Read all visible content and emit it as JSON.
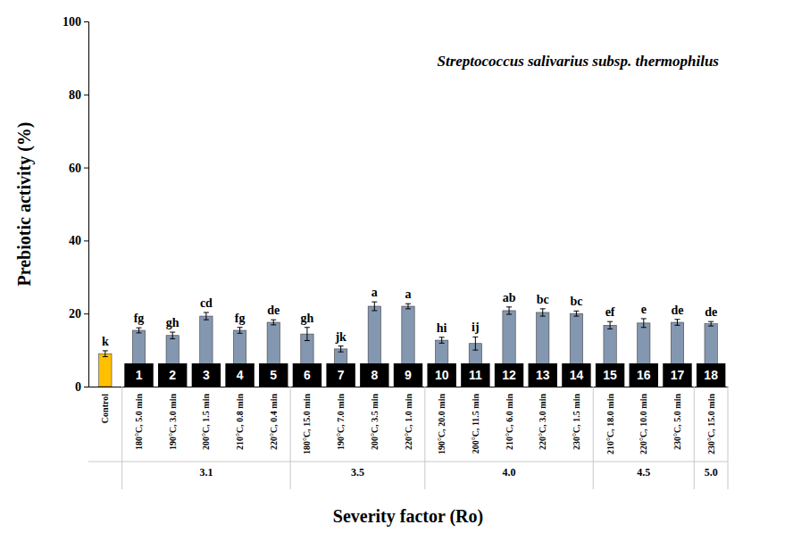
{
  "chart_data": {
    "type": "bar",
    "annotation": "Streptococcus salivarius subsp. thermophilus",
    "x_label": "Severity factor (Ro)",
    "y_label": "Prebiotic activity (%)",
    "categories": [
      "Control",
      "180°C, 5.0 min",
      "190°C, 3.0 min",
      "200°C, 1.5 min",
      "210°C, 0.8 min",
      "220°C, 0.4 min",
      "180°C, 15.0 min",
      "190°C, 7.0 min",
      "200°C, 3.5 min",
      "220°C, 1.0 min",
      "190°C, 20.0 min",
      "200°C, 11.5 min",
      "210°C, 6.0 min",
      "220°C, 3.0 min",
      "230°C, 1.5 min",
      "210°C, 18.0 min",
      "220°C, 10.0 min",
      "230°C, 5.0 min",
      "230°C, 15.0 min"
    ],
    "values": [
      9.0,
      15.4,
      14.0,
      19.3,
      15.4,
      17.6,
      14.4,
      10.3,
      22.0,
      22.0,
      12.7,
      11.8,
      20.8,
      20.3,
      20.0,
      16.8,
      17.4,
      17.6,
      17.2
    ],
    "errors": [
      0.8,
      0.7,
      0.9,
      1.0,
      0.8,
      0.7,
      1.8,
      0.8,
      1.2,
      0.7,
      0.8,
      1.8,
      1.0,
      1.0,
      0.7,
      1.0,
      1.2,
      0.8,
      0.6
    ],
    "letters": [
      "k",
      "fg",
      "gh",
      "cd",
      "fg",
      "de",
      "gh",
      "jk",
      "a",
      "a",
      "hi",
      "ij",
      "ab",
      "bc",
      "bc",
      "ef",
      "e",
      "de",
      "de"
    ],
    "bar_numbers": [
      null,
      "1",
      "2",
      "3",
      "4",
      "5",
      "6",
      "7",
      "8",
      "9",
      "10",
      "11",
      "12",
      "13",
      "14",
      "15",
      "16",
      "17",
      "18"
    ],
    "groups": [
      {
        "label": "3.1",
        "count": 5
      },
      {
        "label": "3.5",
        "count": 4
      },
      {
        "label": "4.0",
        "count": 5
      },
      {
        "label": "4.5",
        "count": 3
      },
      {
        "label": "5.0",
        "count": 1
      }
    ],
    "colors": [
      "#ffc000",
      "#8497b0",
      "#8497b0",
      "#8497b0",
      "#8497b0",
      "#8497b0",
      "#8497b0",
      "#8497b0",
      "#8497b0",
      "#8497b0",
      "#8497b0",
      "#8497b0",
      "#8497b0",
      "#8497b0",
      "#8497b0",
      "#8497b0",
      "#8497b0",
      "#8497b0",
      "#8497b0"
    ],
    "ylim": [
      0,
      100
    ],
    "yticks": [
      0,
      20,
      40,
      60,
      80,
      100
    ],
    "grid": false
  }
}
